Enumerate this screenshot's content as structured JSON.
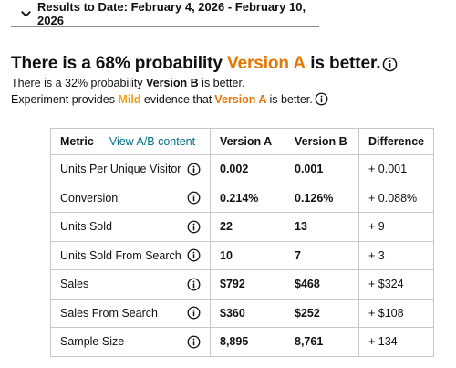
{
  "results": {
    "label": "Results to Date: February 4, 2026 - February 10, 2026"
  },
  "headline": {
    "prefix": "There is a 68% probability",
    "version": "Version A",
    "suffix": "is better."
  },
  "sub1": {
    "prefix": "There is a 32% probability",
    "version": "Version B",
    "suffix": "is better."
  },
  "sub2": {
    "prefix": "Experiment provides",
    "strength": "Mild",
    "middle": "evidence that",
    "version": "Version A",
    "suffix": "is better."
  },
  "table": {
    "headers": {
      "metric": "Metric",
      "view_link": "View A/B content",
      "version_a": "Version A",
      "version_b": "Version B",
      "difference": "Difference"
    },
    "rows": [
      {
        "metric": "Units Per Unique Visitor",
        "a": "0.002",
        "b": "0.001",
        "diff": "+ 0.001"
      },
      {
        "metric": "Conversion",
        "a": "0.214%",
        "b": "0.126%",
        "diff": "+ 0.088%"
      },
      {
        "metric": "Units Sold",
        "a": "22",
        "b": "13",
        "diff": "+ 9"
      },
      {
        "metric": "Units Sold From Search",
        "a": "10",
        "b": "7",
        "diff": "+ 3"
      },
      {
        "metric": "Sales",
        "a": "$792",
        "b": "$468",
        "diff": "+ $324"
      },
      {
        "metric": "Sales From Search",
        "a": "$360",
        "b": "$252",
        "diff": "+ $108"
      },
      {
        "metric": "Sample Size",
        "a": "8,895",
        "b": "8,761",
        "diff": "+ 134"
      }
    ]
  },
  "icons": {
    "expander": "chevron-down-icon",
    "info": "info-icon"
  },
  "colors": {
    "accent_orange": "#e77600",
    "mild_orange": "#f0a020",
    "link_teal": "#007185"
  }
}
